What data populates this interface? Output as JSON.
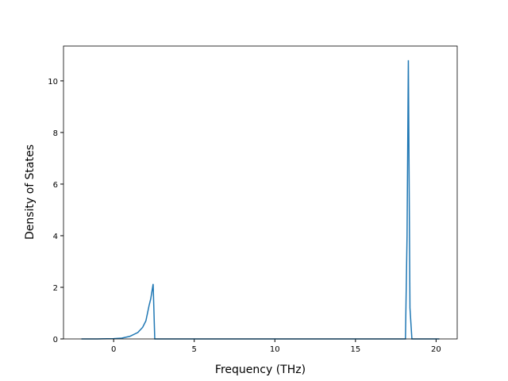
{
  "chart_data": {
    "type": "line",
    "x_label": "Frequency (THz)",
    "y_label": "Density of States",
    "x": [
      -2,
      -1,
      0,
      0.5,
      1.0,
      1.5,
      1.8,
      2.0,
      2.2,
      2.3,
      2.45,
      2.55,
      5,
      10,
      15,
      18.1,
      18.2,
      18.28,
      18.38,
      18.5,
      19,
      20.2
    ],
    "series": [
      {
        "name": "DOS",
        "color": "#1f77b4",
        "values": [
          0,
          0,
          0.01,
          0.03,
          0.1,
          0.25,
          0.45,
          0.7,
          1.3,
          1.55,
          2.13,
          0,
          0,
          0,
          0,
          0,
          4,
          10.8,
          1.2,
          0,
          0,
          0
        ]
      }
    ],
    "xlim": [
      -3.11,
      21.31
    ],
    "xticks": [
      0,
      5,
      10,
      15,
      20
    ],
    "ylim": [
      0,
      11.35
    ],
    "yticks": [
      0,
      2,
      4,
      6,
      8,
      10
    ]
  }
}
